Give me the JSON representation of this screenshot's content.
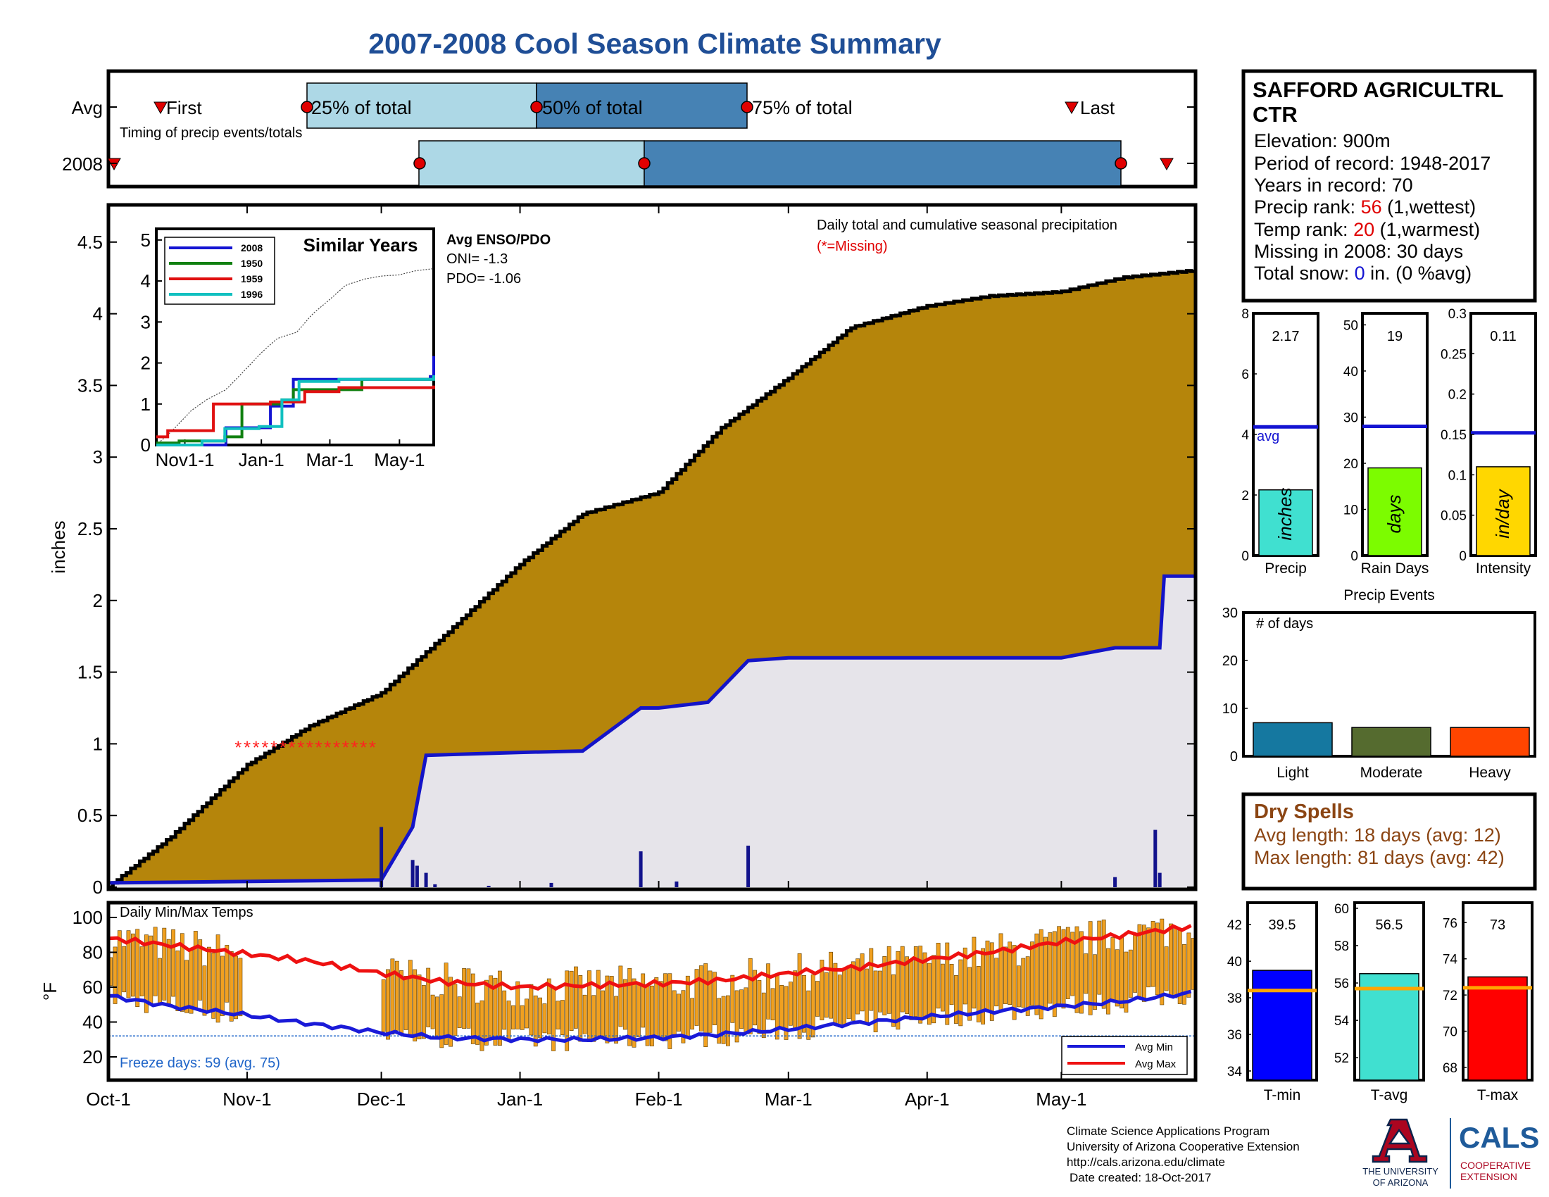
{
  "title": "2007-2008 Cool Season Climate Summary",
  "colors": {
    "title": "#1f4e96",
    "frame": "#000000",
    "cum_fill": "#b5850b",
    "cum_line": "#000000",
    "season_line": "#1414c8",
    "season_fill": "#e6e4ea",
    "daily_bar": "#12128c",
    "q_light": "#add8e6",
    "q_dark": "#4682b4",
    "marker_red": "#e00000",
    "missing": "#ff2020",
    "temp_bar": "#f0a020",
    "avg_max": "#ee1111",
    "avg_min": "#1a1ad8",
    "freeze_text": "#1e64c8",
    "rank_red": "#e00000",
    "snow_blue": "#1414d2",
    "dry_brown": "#8b4513",
    "ua_red": "#ab0520",
    "ua_navy": "#0c234b",
    "cals_blue": "#1f5b9a"
  },
  "timing": {
    "row_avg_label": "Avg",
    "row_year_label": "2008",
    "first_label": "First",
    "last_label": "Last",
    "q25_label": "25% of total",
    "q50_label": "50% of total",
    "q75_label": "75% of total",
    "caption": "Timing of precip events/totals"
  },
  "main": {
    "ylabel": "inches",
    "yticks": [
      "0",
      "0.5",
      "1",
      "1.5",
      "2",
      "2.5",
      "3",
      "3.5",
      "4",
      "4.5"
    ],
    "xticks": [
      "Oct-1",
      "Nov-1",
      "Dec-1",
      "Jan-1",
      "Feb-1",
      "Mar-1",
      "Apr-1",
      "May-1"
    ],
    "legend_title": "Daily total and cumulative seasonal precipitation",
    "legend_missing": "(*=Missing)",
    "enso_title": "Avg ENSO/PDO",
    "oni": "ONI= -1.3",
    "pdo": "PDO= -1.06"
  },
  "inset": {
    "title": "Similar Years",
    "yticks": [
      "0",
      "1",
      "2",
      "3",
      "4",
      "5"
    ],
    "xticks": [
      "Nov1-1",
      "Jan-1",
      "Mar-1",
      "May-1"
    ],
    "legend": [
      {
        "name": "2008",
        "color": "#1414d2"
      },
      {
        "name": "1950",
        "color": "#108010"
      },
      {
        "name": "1959",
        "color": "#e01010"
      },
      {
        "name": "1996",
        "color": "#10c0c0"
      }
    ]
  },
  "temps": {
    "title": "Daily Min/Max Temps",
    "ylabel": "°F",
    "yticks": [
      "20",
      "40",
      "60",
      "80",
      "100"
    ],
    "freeze_text": "Freeze days: 59 (avg. 75)",
    "legend_min": "Avg Min",
    "legend_max": "Avg Max"
  },
  "station": {
    "name_line1": "SAFFORD AGRICULTRL",
    "name_line2": "CTR",
    "elevation": "Elevation: 900m",
    "period": "Period of record: 1948-2017",
    "years": "Years in record: 70",
    "precip_rank_pre": "Precip rank: ",
    "precip_rank_val": "56",
    "precip_rank_post": " (1,wettest)",
    "temp_rank_pre": "Temp rank: ",
    "temp_rank_val": "20",
    "temp_rank_post": " (1,warmest)",
    "missing": "Missing in 2008: 30 days",
    "snow_pre": "Total snow: ",
    "snow_val": "0",
    "snow_post": " in. (0 %avg)"
  },
  "stat_bars": [
    {
      "label": "Precip",
      "value_text": "2.17",
      "unit": "inches",
      "yticks": [
        "0",
        "2",
        "4",
        "6",
        "8"
      ],
      "avg_label": "avg",
      "color": "#40e0d0"
    },
    {
      "label": "Rain Days",
      "value_text": "19",
      "unit": "days",
      "yticks": [
        "0",
        "10",
        "20",
        "30",
        "40",
        "50"
      ],
      "color": "#7cfc00"
    },
    {
      "label": "Intensity",
      "value_text": "0.11",
      "unit": "in/day",
      "yticks": [
        "0",
        "0.05",
        "0.1",
        "0.15",
        "0.2",
        "0.25",
        "0.3"
      ],
      "color": "#ffd700"
    }
  ],
  "events": {
    "title": "Precip Events",
    "inner_label": "# of days",
    "yticks": [
      "0",
      "10",
      "20",
      "30"
    ],
    "bars": [
      {
        "label": "Light",
        "value": 7,
        "color": "#1578a0"
      },
      {
        "label": "Moderate",
        "value": 6,
        "color": "#556b2f"
      },
      {
        "label": "Heavy",
        "value": 6,
        "color": "#ff4500"
      }
    ]
  },
  "dry_spells": {
    "title": "Dry Spells",
    "avg": "Avg length: 18 days (avg: 12)",
    "max": "Max length: 81 days (avg: 42)"
  },
  "temp_bars": [
    {
      "label": "T-min",
      "value_text": "39.5",
      "yticks": [
        "34",
        "36",
        "38",
        "40",
        "42"
      ],
      "color": "#0000ff"
    },
    {
      "label": "T-avg",
      "value_text": "56.5",
      "yticks": [
        "52",
        "54",
        "56",
        "58",
        "60"
      ],
      "color": "#40e0d0"
    },
    {
      "label": "T-max",
      "value_text": "73",
      "yticks": [
        "68",
        "70",
        "72",
        "74",
        "76"
      ],
      "color": "#ff0000"
    }
  ],
  "footer": {
    "line1": "Climate Science Applications Program",
    "line2": "University of Arizona Cooperative Extension",
    "line3": "http://cals.arizona.edu/climate",
    "line4": "Date created: 18-Oct-2017",
    "ua_line1": "THE UNIVERSITY",
    "ua_line2": "OF ARIZONA",
    "cals": "CALS",
    "cals_sub1": "COOPERATIVE",
    "cals_sub2": "EXTENSION"
  },
  "chart_data": [
    {
      "type": "area",
      "title": "Daily total and cumulative seasonal precipitation",
      "ylabel": "inches",
      "ylim": [
        0,
        4.8
      ],
      "x_dates": [
        "Oct-1",
        "Nov-1",
        "Dec-1",
        "Jan-1",
        "Feb-1",
        "Mar-1",
        "Apr-1",
        "May-1"
      ],
      "series": [
        {
          "name": "cumulative_avg",
          "x": [
            "Oct-1",
            "Oct-15",
            "Nov-1",
            "Nov-15",
            "Dec-1",
            "Dec-15",
            "Jan-1",
            "Jan-15",
            "Feb-1",
            "Feb-15",
            "Mar-1",
            "Mar-15",
            "Apr-1",
            "Apr-15",
            "May-1",
            "May-15",
            "May-31"
          ],
          "values": [
            0,
            0.35,
            0.85,
            1.12,
            1.35,
            1.75,
            2.25,
            2.6,
            2.75,
            3.2,
            3.55,
            3.9,
            4.05,
            4.12,
            4.15,
            4.25,
            4.3
          ]
        },
        {
          "name": "2008",
          "x": [
            "Oct-1",
            "Dec-1",
            "Dec-8",
            "Dec-11",
            "Jan-1",
            "Jan-15",
            "Jan-28",
            "Feb-1",
            "Feb-12",
            "Feb-21",
            "Mar-1",
            "Apr-1",
            "May-1",
            "May-13",
            "May-23",
            "May-24",
            "May-31"
          ],
          "values": [
            0.03,
            0.05,
            0.42,
            0.92,
            0.94,
            0.95,
            1.25,
            1.25,
            1.29,
            1.58,
            1.6,
            1.6,
            1.6,
            1.67,
            1.67,
            2.17,
            2.17
          ]
        }
      ],
      "daily_spikes": [
        {
          "date": "Dec-1",
          "value": 0.42
        },
        {
          "date": "Dec-8",
          "value": 0.19
        },
        {
          "date": "Dec-9",
          "value": 0.15
        },
        {
          "date": "Dec-11",
          "value": 0.1
        },
        {
          "date": "Dec-13",
          "value": 0.02
        },
        {
          "date": "Dec-25",
          "value": 0.01
        },
        {
          "date": "Jan-8",
          "value": 0.03
        },
        {
          "date": "Jan-28",
          "value": 0.25
        },
        {
          "date": "Feb-5",
          "value": 0.04
        },
        {
          "date": "Feb-21",
          "value": 0.29
        },
        {
          "date": "May-13",
          "value": 0.07
        },
        {
          "date": "May-22",
          "value": 0.4
        },
        {
          "date": "May-23",
          "value": 0.1
        }
      ],
      "missing_markers": {
        "from": "Oct-30",
        "to": "Nov-30",
        "value": 1.0
      }
    },
    {
      "type": "bar",
      "title": "Daily Min/Max Temps",
      "ylabel": "°F",
      "ylim": [
        10,
        105
      ],
      "series": [
        {
          "name": "Avg Max",
          "x": [
            "Oct-1",
            "Oct-15",
            "Nov-1",
            "Nov-15",
            "Dec-1",
            "Dec-15",
            "Jan-1",
            "Jan-15",
            "Feb-1",
            "Feb-15",
            "Mar-1",
            "Mar-15",
            "Apr-1",
            "Apr-15",
            "May-1",
            "May-15",
            "May-31"
          ],
          "values": [
            88,
            84,
            79,
            75,
            68,
            63,
            60,
            61,
            62,
            64,
            68,
            71,
            76,
            80,
            86,
            90,
            95
          ]
        },
        {
          "name": "Avg Min",
          "x": [
            "Oct-1",
            "Oct-15",
            "Nov-1",
            "Nov-15",
            "Dec-1",
            "Dec-15",
            "Jan-1",
            "Jan-15",
            "Feb-1",
            "Feb-15",
            "Mar-1",
            "Mar-15",
            "Apr-1",
            "Apr-15",
            "May-1",
            "May-15",
            "May-31"
          ],
          "values": [
            55,
            49,
            44,
            39,
            34,
            31,
            30,
            30,
            31,
            33,
            36,
            39,
            43,
            46,
            49,
            52,
            57
          ]
        }
      ],
      "freeze_line": 32
    },
    {
      "type": "bar",
      "title": "Precip Events",
      "categories": [
        "Light",
        "Moderate",
        "Heavy"
      ],
      "values": [
        7,
        6,
        6
      ],
      "ylim": [
        0,
        30
      ]
    },
    {
      "type": "bar",
      "categories": [
        "Precip",
        "Rain Days",
        "Intensity"
      ],
      "values": [
        2.17,
        19,
        0.11
      ],
      "averages": [
        4.25,
        28,
        0.152
      ]
    },
    {
      "type": "bar",
      "categories": [
        "T-min",
        "T-avg",
        "T-max"
      ],
      "values": [
        39.5,
        56.5,
        73
      ],
      "averages": [
        38.4,
        55.7,
        72.4
      ]
    }
  ]
}
